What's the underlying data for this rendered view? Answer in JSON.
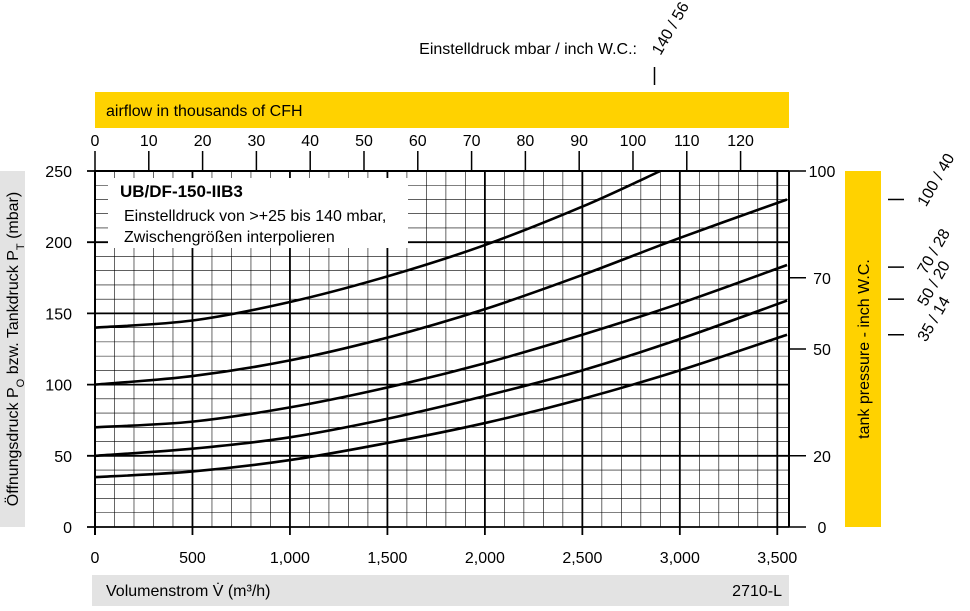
{
  "chart_data": {
    "type": "line",
    "title": "UB/DF-150-IIB3",
    "subtitle": [
      "Einstelldruck von >+25 bis 140 mbar,",
      "Zwischengrößen interpolieren"
    ],
    "ylabel_parts": [
      "Öffnungsdruck P",
      "O",
      " bzw. Tankdruck P",
      "T",
      " (mbar)"
    ],
    "xlabel": "Volumenstrom V̇ (m³/h)",
    "code": "2710-L",
    "top_axis_label": "airflow in thousands of CFH",
    "y2label": "tank pressure  - inch W.C.",
    "setting_label": "Einstelldruck mbar / inch W.C.:",
    "xlim": [
      0,
      3560
    ],
    "xticks": [
      0,
      500,
      {
        "value": 1000,
        "label": "1,000"
      },
      {
        "value": 1500,
        "label": "1,500"
      },
      {
        "value": 2000,
        "label": "2,000"
      },
      {
        "value": 2500,
        "label": "2,500"
      },
      {
        "value": 3000,
        "label": "3,000"
      },
      {
        "value": 3500,
        "label": "3,500"
      }
    ],
    "x2lim": [
      0,
      129
    ],
    "x2ticks": [
      0,
      10,
      20,
      30,
      40,
      50,
      60,
      70,
      80,
      90,
      100,
      110,
      120
    ],
    "ylim": [
      0,
      250
    ],
    "yticks": [
      0,
      50,
      100,
      150,
      200,
      250
    ],
    "y2lim": [
      0,
      100
    ],
    "y2ticks": [
      0,
      20,
      50,
      70,
      100
    ],
    "grid": true,
    "series": [
      {
        "color": "#000000",
        "x": [
          0,
          500,
          1000,
          1500,
          2000,
          2500,
          2900
        ],
        "values": [
          140,
          145,
          158,
          176,
          198,
          225,
          250
        ]
      },
      {
        "color": "#000000",
        "x": [
          0,
          500,
          1000,
          1500,
          2000,
          2500,
          3000,
          3550
        ],
        "values": [
          100,
          106,
          117,
          133,
          153,
          177,
          203,
          230
        ]
      },
      {
        "color": "#000000",
        "x": [
          0,
          500,
          1000,
          1500,
          2000,
          2500,
          3000,
          3550
        ],
        "values": [
          70,
          74,
          84,
          98,
          115,
          135,
          157,
          184
        ]
      },
      {
        "color": "#000000",
        "x": [
          0,
          500,
          1000,
          1500,
          2000,
          2500,
          3000,
          3550
        ],
        "values": [
          50,
          55,
          63,
          76,
          92,
          110,
          132,
          159
        ]
      },
      {
        "color": "#000000",
        "x": [
          0,
          500,
          1000,
          1500,
          2000,
          2500,
          3000,
          3550
        ],
        "values": [
          35,
          39,
          47,
          59,
          73,
          90,
          110,
          135
        ]
      }
    ],
    "right_annotations": [
      {
        "label": "100 / 40",
        "y2": 92
      },
      {
        "label": "70 / 28",
        "y2": 73
      },
      {
        "label": "50 / 20",
        "y2": 64
      },
      {
        "label": "35  / 14",
        "y2": 54
      }
    ],
    "top_annotation": {
      "label": "140 / 56",
      "x2": 104
    }
  }
}
